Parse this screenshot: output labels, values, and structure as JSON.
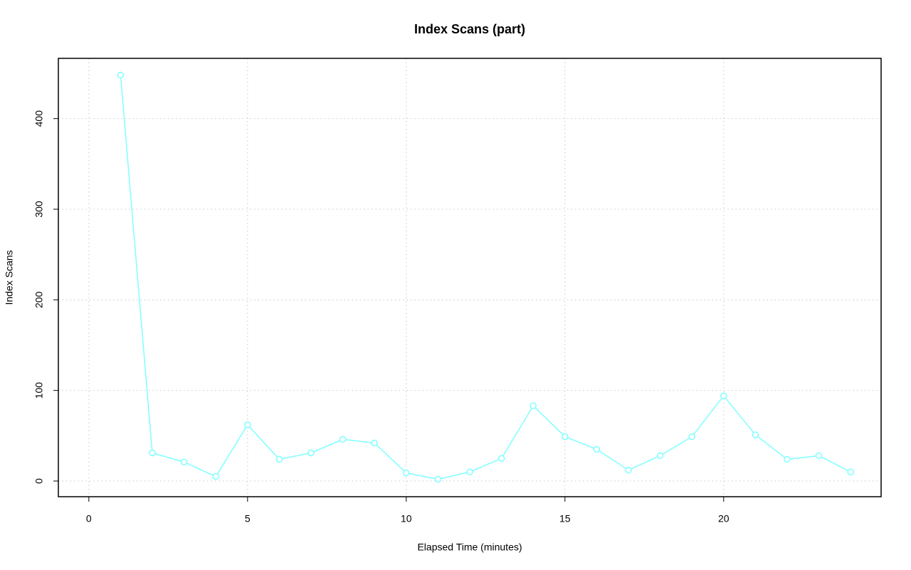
{
  "chart_data": {
    "type": "line",
    "title": "Index Scans (part)",
    "x_label": "Elapsed Time (minutes)",
    "y_label": "Index Scans",
    "x": [
      1,
      2,
      3,
      4,
      5,
      6,
      7,
      8,
      9,
      10,
      11,
      12,
      13,
      14,
      15,
      16,
      17,
      18,
      19,
      20,
      21,
      22,
      23,
      24
    ],
    "series": [
      {
        "name": "Index Scans",
        "color": "#80ffff",
        "values": [
          448,
          31,
          21,
          5,
          62,
          24,
          31,
          46,
          42,
          9,
          2,
          10,
          25,
          83,
          49,
          35,
          12,
          28,
          49,
          94,
          51,
          24,
          28,
          10
        ]
      }
    ],
    "xlim": [
      -0.96,
      24.96
    ],
    "xticks": [
      0,
      5,
      10,
      15,
      20
    ],
    "ylim": [
      -17.3,
      466.5
    ],
    "yticks": [
      0,
      100,
      200,
      300,
      400
    ],
    "grid": true
  }
}
